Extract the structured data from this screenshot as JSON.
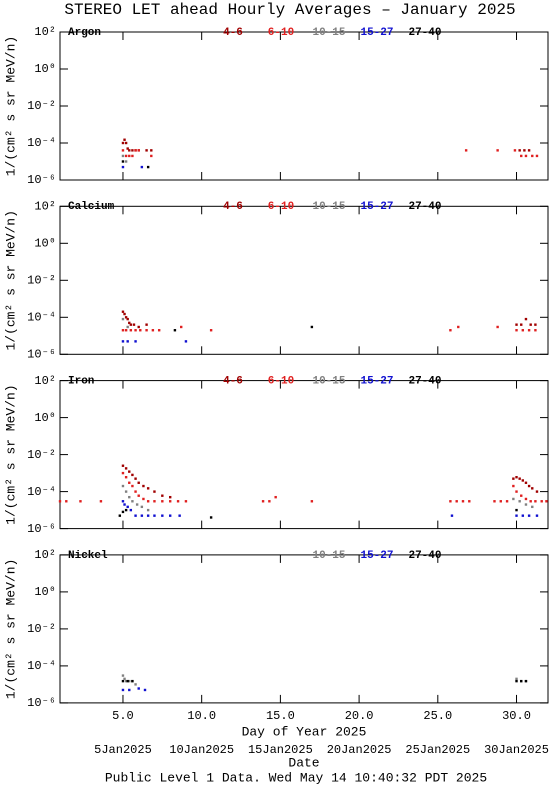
{
  "title": "STEREO LET ahead Hourly Averages – January 2025",
  "footer": "Public Level 1 Data. Wed May 14 10:40:32 PDT 2025",
  "x_axis": {
    "xlim": [
      1,
      32
    ],
    "xticks": [
      {
        "value": 5,
        "label": "5.0"
      },
      {
        "value": 10,
        "label": "10.0"
      },
      {
        "value": 15,
        "label": "15.0"
      },
      {
        "value": 20,
        "label": "20.0"
      },
      {
        "value": 25,
        "label": "25.0"
      },
      {
        "value": 30,
        "label": "30.0"
      }
    ],
    "xlabel": "Day of Year 2025",
    "date_ticks": [
      {
        "value": 5,
        "label": "5Jan2025"
      },
      {
        "value": 10,
        "label": "10Jan2025"
      },
      {
        "value": 15,
        "label": "15Jan2025"
      },
      {
        "value": 20,
        "label": "20Jan2025"
      },
      {
        "value": 25,
        "label": "25Jan2025"
      },
      {
        "value": 30,
        "label": "30Jan2025"
      }
    ],
    "date_label": "Date"
  },
  "chart_data": [
    {
      "type": "scatter",
      "title": "Argon",
      "ylabel": "1/(cm² s sr MeV/n)",
      "log_y": true,
      "ylim": [
        1e-06,
        100
      ],
      "yticks": [
        {
          "value": 100,
          "label": "10²"
        },
        {
          "value": 1,
          "label": "10⁰"
        },
        {
          "value": 0.01,
          "label": "10⁻²"
        },
        {
          "value": 0.0001,
          "label": "10⁻⁴"
        },
        {
          "value": 1e-06,
          "label": "10⁻⁶"
        }
      ],
      "series": [
        {
          "name": "4-6",
          "color": "#a00000",
          "x": [
            5.0,
            5.1,
            5.2,
            5.3,
            5.4,
            5.6,
            5.8,
            6.0,
            6.5,
            6.8,
            30.2,
            30.5,
            30.8
          ],
          "values": [
            0.0001,
            0.00015,
            0.0001,
            5e-05,
            4e-05,
            4e-05,
            4e-05,
            4e-05,
            4e-05,
            4e-05,
            4e-05,
            4e-05,
            4e-05
          ]
        },
        {
          "name": "6-10",
          "color": "#e02020",
          "x": [
            5.0,
            5.2,
            5.4,
            5.6,
            5.8,
            6.0,
            6.8,
            26.8,
            28.8,
            29.9,
            30.3,
            30.6,
            31.0,
            31.3
          ],
          "values": [
            4e-05,
            2e-05,
            2e-05,
            2e-05,
            4e-05,
            4e-05,
            2e-05,
            4e-05,
            4e-05,
            4e-05,
            2e-05,
            2e-05,
            2e-05,
            2e-05
          ]
        },
        {
          "name": "10-15",
          "color": "#808080",
          "x": [
            5.0,
            5.2
          ],
          "values": [
            2e-05,
            1e-05
          ]
        },
        {
          "name": "15-27",
          "color": "#1010d0",
          "x": [
            5.0,
            6.2
          ],
          "values": [
            5e-06,
            5e-06
          ]
        },
        {
          "name": "27-40",
          "color": "#000000",
          "x": [
            5.0,
            6.6
          ],
          "values": [
            1e-05,
            5e-06
          ]
        }
      ]
    },
    {
      "type": "scatter",
      "title": "Calcium",
      "ylabel": "1/(cm² s sr MeV/n)",
      "log_y": true,
      "ylim": [
        1e-06,
        100
      ],
      "yticks": [
        {
          "value": 100,
          "label": "10²"
        },
        {
          "value": 1,
          "label": "10⁰"
        },
        {
          "value": 0.01,
          "label": "10⁻²"
        },
        {
          "value": 0.0001,
          "label": "10⁻⁴"
        },
        {
          "value": 1e-06,
          "label": "10⁻⁶"
        }
      ],
      "series": [
        {
          "name": "4-6",
          "color": "#a00000",
          "x": [
            5.0,
            5.1,
            5.2,
            5.3,
            5.4,
            5.5,
            5.7,
            6.0,
            6.5,
            30.0,
            30.3,
            30.6,
            30.9,
            31.2
          ],
          "values": [
            0.0002,
            0.00015,
            0.0001,
            8e-05,
            5e-05,
            4e-05,
            4e-05,
            3e-05,
            4e-05,
            4e-05,
            4e-05,
            8e-05,
            4e-05,
            4e-05
          ]
        },
        {
          "name": "6-10",
          "color": "#e02020",
          "x": [
            5.0,
            5.2,
            5.5,
            5.8,
            6.1,
            6.5,
            6.9,
            7.3,
            8.7,
            10.6,
            25.8,
            26.3,
            28.8,
            30.0,
            30.4,
            30.8,
            31.2
          ],
          "values": [
            2e-05,
            2e-05,
            2e-05,
            2e-05,
            2e-05,
            2e-05,
            2e-05,
            2e-05,
            3e-05,
            2e-05,
            2e-05,
            3e-05,
            3e-05,
            2e-05,
            2e-05,
            2e-05,
            2e-05
          ]
        },
        {
          "name": "10-15",
          "color": "#808080",
          "x": [
            5.0,
            5.3
          ],
          "values": [
            8e-05,
            3e-05
          ]
        },
        {
          "name": "15-27",
          "color": "#1010d0",
          "x": [
            5.0,
            5.3,
            5.8,
            9.0
          ],
          "values": [
            5e-06,
            5e-06,
            5e-06,
            5e-06
          ]
        },
        {
          "name": "27-40",
          "color": "#000000",
          "x": [
            8.3,
            17.0
          ],
          "values": [
            2e-05,
            3e-05
          ]
        }
      ]
    },
    {
      "type": "scatter",
      "title": "Iron",
      "ylabel": "1/(cm² s sr MeV/n)",
      "log_y": true,
      "ylim": [
        1e-06,
        100
      ],
      "yticks": [
        {
          "value": 100,
          "label": "10²"
        },
        {
          "value": 1,
          "label": "10⁰"
        },
        {
          "value": 0.01,
          "label": "10⁻²"
        },
        {
          "value": 0.0001,
          "label": "10⁻⁴"
        },
        {
          "value": 1e-06,
          "label": "10⁻⁶"
        }
      ],
      "series": [
        {
          "name": "4-6",
          "color": "#a00000",
          "x": [
            5.0,
            5.2,
            5.4,
            5.6,
            5.8,
            6.0,
            6.3,
            6.6,
            7.0,
            7.5,
            8.0,
            29.8,
            30.0,
            30.2,
            30.4,
            30.6,
            30.8,
            31.0,
            31.3
          ],
          "values": [
            0.0025,
            0.0018,
            0.0012,
            0.0008,
            0.0005,
            0.0003,
            0.0002,
            0.00015,
            0.0001,
            6e-05,
            5e-05,
            0.0005,
            0.0006,
            0.0005,
            0.0004,
            0.0003,
            0.0002,
            0.00015,
            0.0001
          ]
        },
        {
          "name": "6-10",
          "color": "#e02020",
          "x": [
            1.0,
            1.4,
            2.3,
            3.6,
            5.0,
            5.2,
            5.4,
            5.6,
            5.8,
            6.0,
            6.3,
            6.6,
            7.0,
            7.5,
            8.0,
            8.5,
            9.0,
            13.9,
            14.3,
            14.7,
            17.0,
            25.8,
            26.2,
            26.6,
            27.0,
            28.6,
            29.0,
            29.4,
            29.8,
            30.0,
            30.3,
            30.6,
            30.9,
            31.2,
            31.6,
            31.9
          ],
          "values": [
            3e-05,
            3e-05,
            3e-05,
            3e-05,
            0.001,
            0.0006,
            0.0003,
            0.0002,
            0.0001,
            6e-05,
            4e-05,
            3e-05,
            3e-05,
            3e-05,
            3e-05,
            3e-05,
            3e-05,
            3e-05,
            3e-05,
            5e-05,
            3e-05,
            3e-05,
            3e-05,
            3e-05,
            3e-05,
            3e-05,
            3e-05,
            3e-05,
            0.0002,
            0.0001,
            6e-05,
            4e-05,
            3e-05,
            3e-05,
            3e-05,
            3e-05
          ]
        },
        {
          "name": "10-15",
          "color": "#808080",
          "x": [
            5.0,
            5.2,
            5.4,
            5.6,
            5.9,
            6.2,
            6.6,
            29.8,
            30.2,
            30.6,
            31.0
          ],
          "values": [
            0.0002,
            0.0001,
            5e-05,
            3e-05,
            2e-05,
            1.5e-05,
            1e-05,
            4e-05,
            3e-05,
            2e-05,
            1.5e-05
          ]
        },
        {
          "name": "15-27",
          "color": "#1010d0",
          "x": [
            5.0,
            5.1,
            5.3,
            5.5,
            5.8,
            6.2,
            6.6,
            7.0,
            7.5,
            8.0,
            8.6,
            25.9,
            30.0,
            30.4,
            30.8,
            31.3
          ],
          "values": [
            3e-05,
            2e-05,
            1.5e-05,
            1e-05,
            5e-06,
            5e-06,
            5e-06,
            5e-06,
            5e-06,
            5e-06,
            5e-06,
            5e-06,
            5e-06,
            5e-06,
            5e-06,
            5e-06
          ]
        },
        {
          "name": "27-40",
          "color": "#000000",
          "x": [
            4.8,
            5.0,
            5.2,
            10.6,
            30.0
          ],
          "values": [
            5e-06,
            8e-06,
            1e-05,
            4e-06,
            1e-05
          ]
        }
      ]
    },
    {
      "type": "scatter",
      "title": "Nickel",
      "ylabel": "1/(cm² s sr MeV/n)",
      "log_y": true,
      "ylim": [
        1e-06,
        100
      ],
      "yticks": [
        {
          "value": 100,
          "label": "10²"
        },
        {
          "value": 1,
          "label": "10⁰"
        },
        {
          "value": 0.01,
          "label": "10⁻²"
        },
        {
          "value": 0.0001,
          "label": "10⁻⁴"
        },
        {
          "value": 1e-06,
          "label": "10⁻⁶"
        }
      ],
      "series": [
        {
          "name": "10-15",
          "color": "#808080",
          "x": [
            5.0,
            5.1,
            5.2,
            5.4,
            5.6,
            5.8,
            30.0,
            30.3,
            30.6
          ],
          "values": [
            3e-05,
            2e-05,
            1.5e-05,
            1.5e-05,
            1.5e-05,
            1e-05,
            2e-05,
            1.5e-05,
            1.5e-05
          ]
        },
        {
          "name": "15-27",
          "color": "#1010d0",
          "x": [
            5.0,
            5.4,
            6.0,
            6.4
          ],
          "values": [
            5e-06,
            5e-06,
            6e-06,
            5e-06
          ]
        },
        {
          "name": "27-40",
          "color": "#000000",
          "x": [
            5.0,
            5.3,
            5.6,
            30.0,
            30.3,
            30.6
          ],
          "values": [
            1.5e-05,
            1.5e-05,
            1.5e-05,
            1.5e-05,
            1.5e-05,
            1.5e-05
          ]
        }
      ]
    }
  ]
}
